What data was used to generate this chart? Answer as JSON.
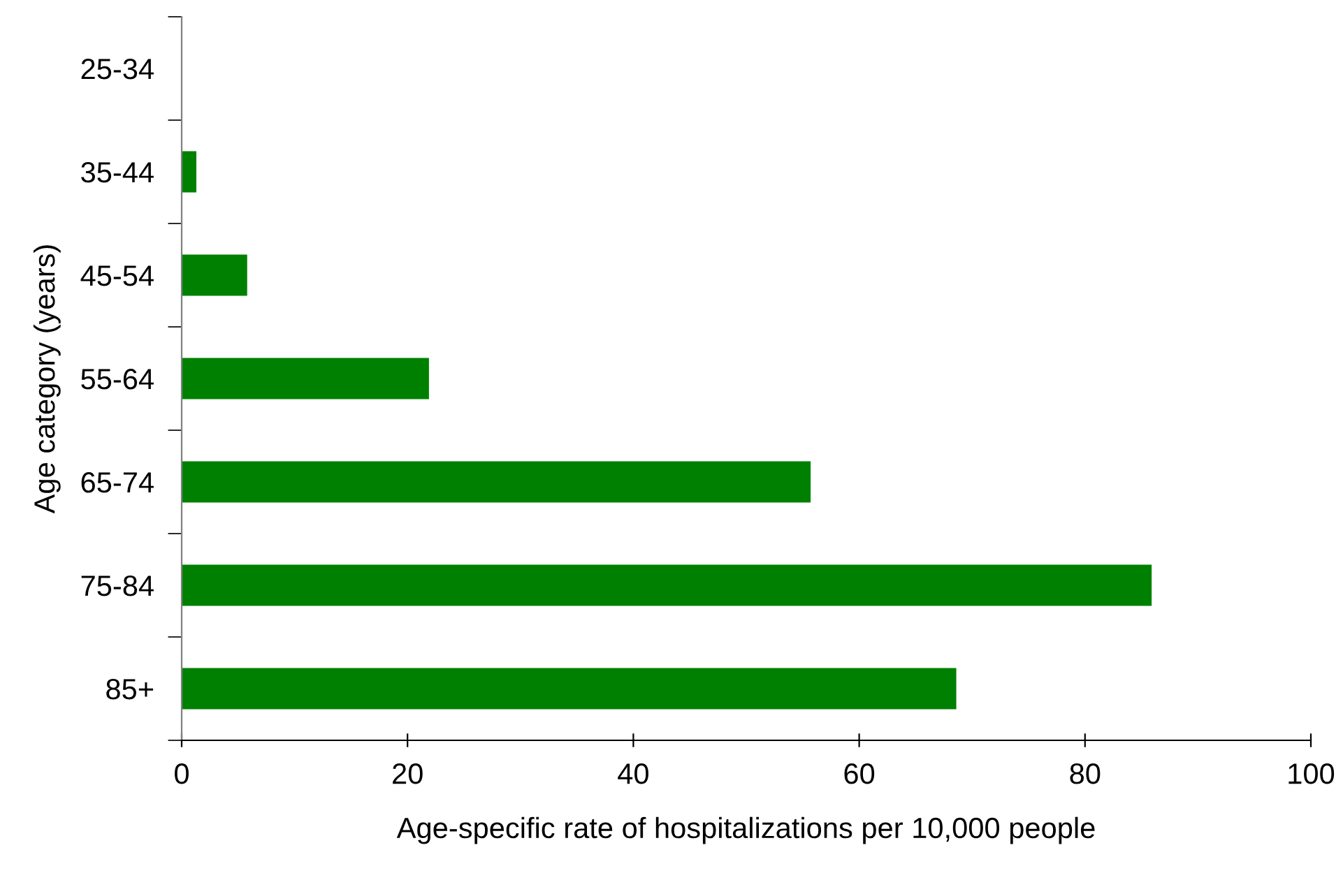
{
  "chart_data": {
    "type": "bar",
    "orientation": "horizontal",
    "categories": [
      "25-34",
      "35-44",
      "45-54",
      "55-64",
      "65-74",
      "75-84",
      "85+"
    ],
    "values": [
      0,
      1.3,
      5.8,
      21.9,
      55.7,
      85.9,
      68.6
    ],
    "color": "#008000",
    "xlabel": "Age-specific rate of hospitalizations per 10,000 people",
    "ylabel": "Age category (years)",
    "xlim": [
      0,
      100
    ],
    "xticks": [
      0,
      20,
      40,
      60,
      80,
      100
    ],
    "grid": false
  }
}
